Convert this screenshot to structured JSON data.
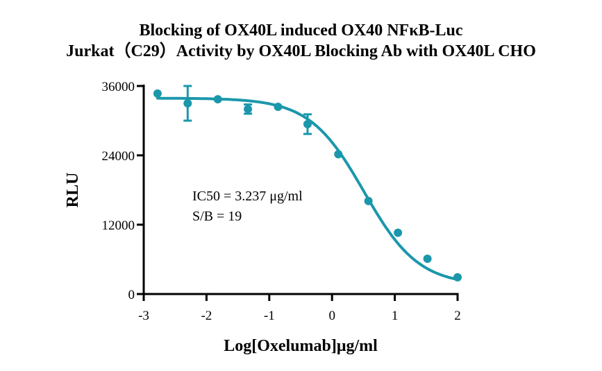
{
  "chart_data": {
    "type": "scatter",
    "title": "Blocking of OX40L induced OX40 NFκB-Luc",
    "subtitle": "Jurkat（C29）Activity by OX40L Blocking Ab with OX40L CHO",
    "xlabel": "Log[Oxelumab]μg/ml",
    "ylabel": "RLU",
    "xlim": [
      -3,
      2
    ],
    "ylim": [
      0,
      36000
    ],
    "x_ticks": [
      -3,
      -2,
      -1,
      0,
      1,
      2
    ],
    "x_tick_labels": [
      "-3",
      "-2",
      "-1",
      "0",
      "1",
      "2"
    ],
    "y_ticks": [
      0,
      12000,
      24000,
      36000
    ],
    "y_tick_labels": [
      "0",
      "12000",
      "24000",
      "36000"
    ],
    "grid": false,
    "legend": null,
    "series": [
      {
        "name": "Oxelumab",
        "color": "#1b97ab",
        "fit": "4PL sigmoidal dose-response",
        "x": [
          -2.78,
          -2.3,
          -1.82,
          -1.34,
          -0.86,
          -0.39,
          0.1,
          0.58,
          1.05,
          1.52,
          2.0
        ],
        "y": [
          34700,
          33000,
          33700,
          32000,
          32400,
          29400,
          24200,
          16100,
          10600,
          6100,
          2900
        ],
        "error": [
          0,
          3000,
          0,
          800,
          0,
          1700,
          0,
          0,
          0,
          0,
          0
        ]
      }
    ],
    "fit_params": {
      "top": 33900,
      "bottom": 1500,
      "log_ic50": 0.51,
      "hill": 1.0
    },
    "annotations": [
      "IC50 = 3.237 μg/ml",
      "S/B = 19"
    ]
  }
}
